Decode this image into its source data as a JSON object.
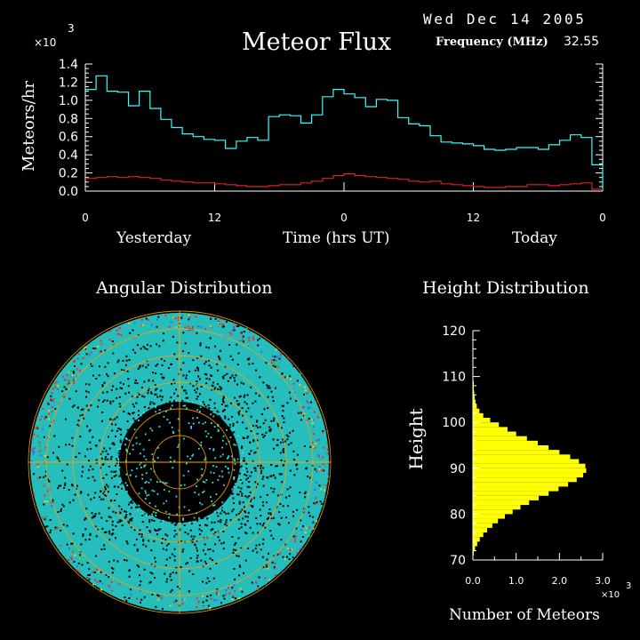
{
  "header": {
    "date": "Wed Dec 14 2005",
    "title": "Meteor Flux",
    "frequency_label": "Frequency (MHz)",
    "frequency_value": "32.55"
  },
  "colors": {
    "background": "#000000",
    "flux_total": "#33ffff",
    "flux_secondary": "#dd2222",
    "height_hist": "#ffff00",
    "grid": "#ffa500",
    "axis": "#ffffff"
  },
  "chart_data": [
    {
      "type": "line",
      "title": "Meteor Flux",
      "ylabel": "Meteors/hr",
      "y_multiplier_label": "×10",
      "y_multiplier_exp": "3",
      "xlabel": "Time (hrs UT)",
      "x_group_labels": [
        "Yesterday",
        "Today"
      ],
      "xlim": [
        0,
        48
      ],
      "ylim": [
        0,
        1.4
      ],
      "x_ticks": [
        0,
        12,
        24,
        36,
        48
      ],
      "x_tick_labels": [
        "0",
        "12",
        "0",
        "12",
        "0"
      ],
      "y_ticks": [
        0,
        0.2,
        0.4,
        0.6,
        0.8,
        1.0,
        1.2,
        1.4
      ],
      "y_tick_labels": [
        "0.0",
        "0.2",
        "0.4",
        "0.6",
        "0.8",
        "1.0",
        "1.2",
        "1.4"
      ],
      "x_edges": [
        0,
        1,
        2,
        3,
        4,
        5,
        6,
        7,
        8,
        9,
        10,
        11,
        12,
        13,
        14,
        15,
        16,
        17,
        18,
        19,
        20,
        21,
        22,
        23,
        24,
        25,
        26,
        27,
        28,
        29,
        30,
        31,
        32,
        33,
        34,
        35,
        36,
        37,
        38,
        39,
        40,
        41,
        42,
        43,
        44,
        45,
        46,
        47,
        48
      ],
      "series": [
        {
          "values": [
            1.12,
            1.27,
            1.1,
            1.09,
            0.94,
            1.1,
            0.91,
            0.79,
            0.7,
            0.63,
            0.6,
            0.57,
            0.56,
            0.47,
            0.55,
            0.59,
            0.56,
            0.82,
            0.84,
            0.83,
            0.75,
            0.84,
            1.04,
            1.12,
            1.07,
            1.03,
            0.93,
            1.01,
            1.0,
            0.81,
            0.74,
            0.72,
            0.61,
            0.54,
            0.53,
            0.52,
            0.5,
            0.46,
            0.45,
            0.46,
            0.48,
            0.48,
            0.46,
            0.51,
            0.56,
            0.62,
            0.59,
            0.29
          ]
        },
        {
          "values": [
            0.14,
            0.15,
            0.16,
            0.15,
            0.16,
            0.15,
            0.14,
            0.12,
            0.11,
            0.1,
            0.09,
            0.09,
            0.08,
            0.07,
            0.06,
            0.05,
            0.05,
            0.06,
            0.07,
            0.07,
            0.09,
            0.11,
            0.14,
            0.17,
            0.19,
            0.17,
            0.16,
            0.15,
            0.14,
            0.13,
            0.11,
            0.1,
            0.11,
            0.08,
            0.07,
            0.06,
            0.05,
            0.04,
            0.04,
            0.05,
            0.05,
            0.07,
            0.07,
            0.06,
            0.07,
            0.08,
            0.09,
            0.02
          ]
        }
      ]
    },
    {
      "type": "bar",
      "orientation": "horizontal",
      "title": "Height Distribution",
      "ylabel": "Height",
      "xlabel": "Number of Meteors",
      "x_multiplier_label": "×10",
      "x_multiplier_exp": "3",
      "xlim": [
        0,
        3.0
      ],
      "ylim": [
        70,
        120
      ],
      "x_ticks": [
        0,
        1,
        2,
        3
      ],
      "x_tick_labels": [
        "0.0",
        "1.0",
        "2.0",
        "3.0"
      ],
      "y_ticks": [
        70,
        80,
        90,
        100,
        110,
        120
      ],
      "y_tick_labels": [
        "70",
        "80",
        "90",
        "100",
        "110",
        "120"
      ],
      "bin_width": 1,
      "bins_start": [
        71,
        72,
        73,
        74,
        75,
        76,
        77,
        78,
        79,
        80,
        81,
        82,
        83,
        84,
        85,
        86,
        87,
        88,
        89,
        90,
        91,
        92,
        93,
        94,
        95,
        96,
        97,
        98,
        99,
        100,
        101,
        102,
        103,
        104,
        105,
        106,
        107,
        108,
        109,
        110,
        111,
        112,
        113,
        114,
        115,
        116,
        117,
        118,
        119
      ],
      "values": [
        0.02,
        0.05,
        0.1,
        0.16,
        0.24,
        0.33,
        0.45,
        0.58,
        0.74,
        0.92,
        1.1,
        1.3,
        1.52,
        1.75,
        1.98,
        2.2,
        2.4,
        2.55,
        2.62,
        2.6,
        2.45,
        2.25,
        2.0,
        1.75,
        1.5,
        1.25,
        1.0,
        0.8,
        0.6,
        0.4,
        0.24,
        0.15,
        0.09,
        0.06,
        0.04,
        0.03,
        0.02,
        0.02,
        0.01,
        0.01,
        0.01,
        0.01,
        0.0,
        0.0,
        0.0,
        0.0,
        0.0,
        0.0,
        0.0
      ]
    }
  ],
  "angular": {
    "title": "Angular Distribution"
  }
}
